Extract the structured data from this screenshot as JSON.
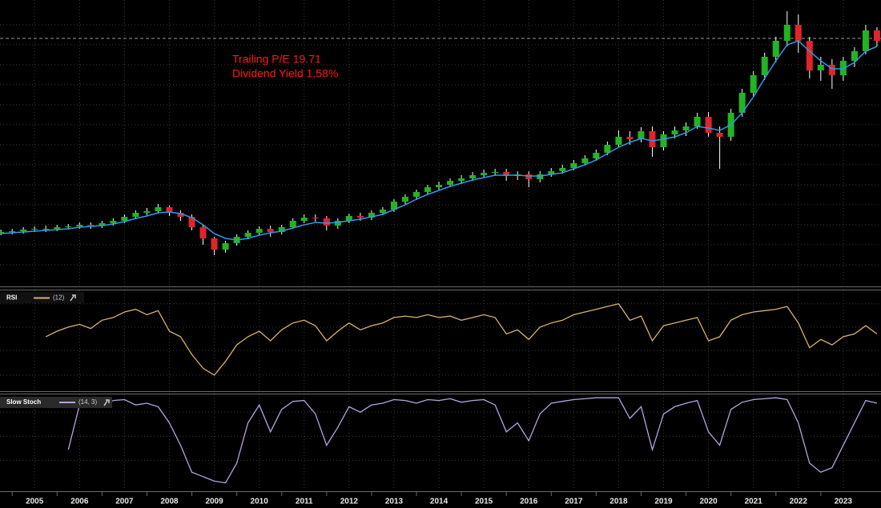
{
  "chart_data": [
    {
      "type": "candlestick",
      "annotations": [
        "Trailing P/E 19.71",
        "Dividend Yield 1.58%"
      ],
      "annotation_color": "#ff1a1a",
      "x": [
        2004.25,
        2004.5,
        2004.75,
        2005,
        2005.25,
        2005.5,
        2005.75,
        2006,
        2006.25,
        2006.5,
        2006.75,
        2007,
        2007.25,
        2007.5,
        2007.75,
        2008,
        2008.25,
        2008.5,
        2008.75,
        2009,
        2009.25,
        2009.5,
        2009.75,
        2010,
        2010.25,
        2010.5,
        2010.75,
        2011,
        2011.25,
        2011.5,
        2011.75,
        2012,
        2012.25,
        2012.5,
        2012.75,
        2013,
        2013.25,
        2013.5,
        2013.75,
        2014,
        2014.25,
        2014.5,
        2014.75,
        2015,
        2015.25,
        2015.5,
        2015.75,
        2016,
        2016.25,
        2016.5,
        2016.75,
        2017,
        2017.25,
        2017.5,
        2017.75,
        2018,
        2018.25,
        2018.5,
        2018.75,
        2019,
        2019.25,
        2019.5,
        2019.75,
        2020,
        2020.25,
        2020.5,
        2020.75,
        2021,
        2021.25,
        2021.5,
        2021.75,
        2022,
        2022.25,
        2022.5,
        2022.75,
        2023,
        2023.25,
        2023.5,
        2023.75
      ],
      "open": [
        65,
        66,
        67,
        69,
        70,
        70,
        72,
        73,
        75,
        74,
        77,
        80,
        85,
        90,
        92,
        97,
        90,
        85,
        72,
        58,
        44,
        52,
        60,
        65,
        70,
        66,
        72,
        80,
        84,
        83,
        74,
        80,
        86,
        84,
        90,
        94,
        104,
        110,
        116,
        122,
        125,
        130,
        133,
        137,
        140,
        141,
        136,
        138,
        132,
        138,
        142,
        146,
        152,
        158,
        165,
        175,
        185,
        182,
        192,
        172,
        188,
        193,
        198,
        210,
        190,
        185,
        215,
        240,
        262,
        285,
        305,
        325,
        305,
        268,
        275,
        262,
        280,
        292,
        318
      ],
      "high": [
        69,
        70,
        72,
        73,
        74,
        75,
        76,
        78,
        78,
        80,
        83,
        88,
        93,
        96,
        101,
        99,
        93,
        88,
        75,
        60,
        55,
        63,
        68,
        73,
        74,
        75,
        83,
        88,
        88,
        86,
        83,
        89,
        90,
        93,
        97,
        107,
        113,
        119,
        125,
        129,
        133,
        137,
        141,
        144,
        145,
        145,
        142,
        142,
        142,
        146,
        150,
        156,
        162,
        169,
        179,
        193,
        192,
        197,
        198,
        192,
        198,
        203,
        215,
        216,
        198,
        220,
        245,
        267,
        290,
        310,
        342,
        338,
        310,
        285,
        282,
        285,
        297,
        325,
        322
      ],
      "low": [
        62,
        63,
        64,
        66,
        66,
        67,
        69,
        70,
        70,
        71,
        74,
        77,
        82,
        87,
        89,
        86,
        80,
        68,
        50,
        37,
        40,
        49,
        57,
        62,
        60,
        63,
        70,
        77,
        79,
        68,
        70,
        77,
        80,
        81,
        87,
        91,
        101,
        106,
        113,
        118,
        122,
        126,
        130,
        134,
        136,
        130,
        131,
        122,
        128,
        135,
        139,
        143,
        149,
        155,
        162,
        172,
        175,
        178,
        160,
        168,
        183,
        186,
        195,
        185,
        145,
        180,
        210,
        235,
        256,
        278,
        298,
        290,
        258,
        255,
        245,
        255,
        272,
        288,
        298
      ],
      "close": [
        66,
        67,
        69,
        70,
        70,
        72,
        73,
        75,
        74,
        77,
        80,
        85,
        90,
        92,
        97,
        90,
        85,
        72,
        58,
        44,
        52,
        60,
        65,
        70,
        66,
        72,
        80,
        84,
        83,
        74,
        80,
        86,
        84,
        90,
        94,
        104,
        110,
        116,
        122,
        125,
        130,
        133,
        137,
        140,
        141,
        136,
        138,
        132,
        138,
        142,
        146,
        152,
        158,
        165,
        175,
        185,
        182,
        192,
        172,
        188,
        193,
        198,
        210,
        190,
        185,
        215,
        240,
        262,
        285,
        305,
        325,
        305,
        268,
        275,
        262,
        280,
        292,
        318,
        305
      ],
      "up_color": "#22b422",
      "down_color": "#e0242b",
      "wick_color": "#ffffff",
      "moving_average": {
        "color": "#2e9be6",
        "values": [
          64,
          65,
          66,
          67,
          68,
          69,
          70,
          72,
          73,
          74,
          76,
          79,
          83,
          86,
          90,
          91,
          89,
          84,
          75,
          64,
          58,
          56,
          58,
          62,
          65,
          67,
          71,
          75,
          78,
          77,
          78,
          80,
          82,
          85,
          88,
          94,
          100,
          107,
          113,
          118,
          123,
          127,
          131,
          134,
          137,
          137,
          137,
          136,
          136,
          138,
          140,
          145,
          150,
          156,
          164,
          172,
          178,
          183,
          180,
          182,
          185,
          190,
          198,
          196,
          193,
          200,
          215,
          235,
          258,
          280,
          300,
          305,
          292,
          280,
          270,
          270,
          278,
          292,
          298
        ]
      },
      "reference_line": 308,
      "xlim": [
        2004.23,
        2023.84
      ],
      "ylim": [
        0,
        350
      ],
      "yticks": [
        25,
        50,
        75,
        100,
        125,
        150,
        175,
        200,
        225,
        250,
        275,
        300,
        325
      ],
      "grid": true
    },
    {
      "type": "line",
      "name": "RSI",
      "params": "(12)",
      "color": "#d8b26a",
      "values": [
        null,
        null,
        null,
        null,
        58,
        62,
        65,
        67,
        64,
        70,
        72,
        76,
        78,
        74,
        77,
        62,
        58,
        45,
        35,
        30,
        40,
        52,
        58,
        62,
        55,
        63,
        68,
        70,
        66,
        55,
        62,
        68,
        63,
        66,
        68,
        72,
        73,
        72,
        74,
        72,
        73,
        70,
        72,
        74,
        72,
        60,
        63,
        56,
        65,
        68,
        70,
        74,
        76,
        78,
        80,
        82,
        70,
        73,
        55,
        66,
        68,
        70,
        72,
        55,
        58,
        70,
        74,
        76,
        77,
        78,
        80,
        68,
        50,
        56,
        52,
        58,
        60,
        66,
        60
      ],
      "ylim": [
        20,
        90
      ],
      "yticks": [
        30,
        48,
        65,
        82
      ],
      "grid": true
    },
    {
      "type": "line",
      "name": "Slow Stoch",
      "params": "(14, 3)",
      "color": "#b8a2e3",
      "values": [
        null,
        null,
        null,
        null,
        null,
        null,
        40,
        90,
        92,
        88,
        95,
        96,
        90,
        92,
        88,
        70,
        45,
        15,
        10,
        5,
        3,
        25,
        70,
        90,
        60,
        85,
        94,
        95,
        80,
        45,
        65,
        88,
        82,
        90,
        92,
        96,
        95,
        92,
        96,
        95,
        97,
        93,
        95,
        96,
        90,
        60,
        70,
        50,
        80,
        92,
        94,
        96,
        97,
        98,
        98,
        98,
        75,
        88,
        40,
        80,
        88,
        92,
        95,
        60,
        45,
        85,
        93,
        96,
        97,
        98,
        96,
        70,
        25,
        15,
        20,
        45,
        70,
        95,
        92
      ],
      "ylim": [
        0,
        100
      ],
      "yticks": [
        28,
        55,
        82
      ],
      "xticks": [
        2005,
        2006,
        2007,
        2008,
        2009,
        2010,
        2011,
        2012,
        2013,
        2014,
        2015,
        2016,
        2017,
        2018,
        2019,
        2020,
        2021,
        2022,
        2023
      ],
      "grid": true
    }
  ]
}
